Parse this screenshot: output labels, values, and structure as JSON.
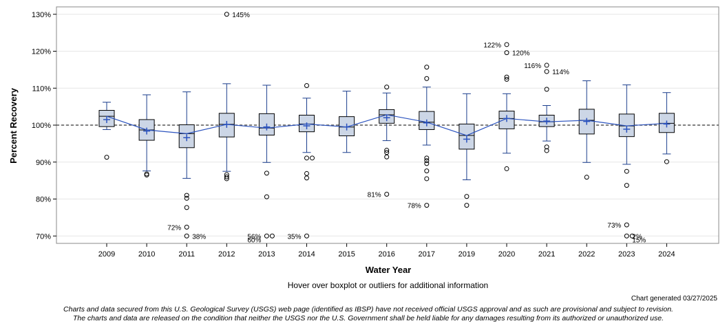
{
  "chart_data": {
    "type": "boxplot",
    "ylabel": "Percent Recovery",
    "xlabel": "Water Year",
    "ylim": [
      68,
      132
    ],
    "yticks": [
      70,
      80,
      90,
      100,
      110,
      120,
      130
    ],
    "ytick_format": "%",
    "reference_line": 100,
    "categories": [
      "2009",
      "2010",
      "2011",
      "2012",
      "2013",
      "2014",
      "2015",
      "2016",
      "2017",
      "2019",
      "2020",
      "2021",
      "2022",
      "2023",
      "2024"
    ],
    "boxes": [
      {
        "year": "2009",
        "whisker_low": 98.8,
        "q1": 99.6,
        "median": 102.4,
        "q3": 104.0,
        "whisker_high": 106.2,
        "mean": 101.5,
        "outliers": [
          91.3
        ]
      },
      {
        "year": "2010",
        "whisker_low": 87.6,
        "q1": 95.9,
        "median": 98.7,
        "q3": 101.5,
        "whisker_high": 108.2,
        "mean": 98.4,
        "outliers": [
          86.8,
          86.5
        ]
      },
      {
        "year": "2011",
        "whisker_low": 85.6,
        "q1": 93.9,
        "median": 97.7,
        "q3": 100.1,
        "whisker_high": 109.0,
        "mean": 96.6,
        "outliers": [
          81.0,
          80.2,
          77.7,
          72.4,
          70.0
        ]
      },
      {
        "year": "2012",
        "whisker_low": 87.5,
        "q1": 96.8,
        "median": 100.2,
        "q3": 103.2,
        "whisker_high": 111.2,
        "mean": 100.2,
        "outliers": [
          86.6,
          86.0,
          85.5,
          130.0
        ]
      },
      {
        "year": "2013",
        "whisker_low": 89.9,
        "q1": 97.3,
        "median": 99.2,
        "q3": 103.1,
        "whisker_high": 110.8,
        "mean": 99.5,
        "outliers": [
          87.0,
          80.6,
          70.0,
          70.0
        ]
      },
      {
        "year": "2014",
        "whisker_low": 92.6,
        "q1": 98.2,
        "median": 100.3,
        "q3": 102.7,
        "whisker_high": 107.3,
        "mean": 99.8,
        "outliers": [
          110.7,
          91.1,
          91.1,
          86.9,
          85.7,
          70.0
        ]
      },
      {
        "year": "2015",
        "whisker_low": 92.6,
        "q1": 97.1,
        "median": 99.5,
        "q3": 102.3,
        "whisker_high": 109.2,
        "mean": 99.5,
        "outliers": []
      },
      {
        "year": "2016",
        "whisker_low": 95.8,
        "q1": 100.5,
        "median": 102.8,
        "q3": 104.2,
        "whisker_high": 108.7,
        "mean": 102.0,
        "outliers": [
          110.3,
          93.2,
          92.6,
          91.4,
          81.3
        ]
      },
      {
        "year": "2017",
        "whisker_low": 94.6,
        "q1": 98.8,
        "median": 100.8,
        "q3": 103.7,
        "whisker_high": 110.3,
        "mean": 100.6,
        "outliers": [
          115.7,
          112.6,
          91.1,
          90.4,
          89.6,
          87.6,
          85.5,
          78.3
        ]
      },
      {
        "year": "2019",
        "whisker_low": 85.2,
        "q1": 93.5,
        "median": 97.2,
        "q3": 100.3,
        "whisker_high": 108.5,
        "mean": 96.2,
        "outliers": [
          80.7,
          78.3
        ]
      },
      {
        "year": "2020",
        "whisker_low": 92.4,
        "q1": 99.0,
        "median": 101.8,
        "q3": 103.8,
        "whisker_high": 108.5,
        "mean": 101.8,
        "outliers": [
          121.8,
          119.6,
          113.0,
          112.4,
          88.2
        ]
      },
      {
        "year": "2021",
        "whisker_low": 95.7,
        "q1": 99.6,
        "median": 100.9,
        "q3": 102.7,
        "whisker_high": 105.3,
        "mean": 101.1,
        "outliers": [
          116.2,
          114.5,
          109.7,
          94.1,
          93.1
        ]
      },
      {
        "year": "2022",
        "whisker_low": 89.9,
        "q1": 97.6,
        "median": 101.3,
        "q3": 104.3,
        "whisker_high": 112.0,
        "mean": 101.0,
        "outliers": [
          85.9
        ]
      },
      {
        "year": "2023",
        "whisker_low": 89.4,
        "q1": 96.9,
        "median": 99.8,
        "q3": 103.0,
        "whisker_high": 110.9,
        "mean": 98.9,
        "outliers": [
          87.5,
          83.7,
          73.0,
          70.0,
          70.0
        ]
      },
      {
        "year": "2024",
        "whisker_low": 92.2,
        "q1": 98.0,
        "median": 100.5,
        "q3": 103.2,
        "whisker_high": 108.8,
        "mean": 100.3,
        "outliers": [
          90.1
        ]
      }
    ],
    "outlier_labels": [
      {
        "year": "2012",
        "y": 130.0,
        "text": "145%",
        "side": "right"
      },
      {
        "year": "2011",
        "y": 72.4,
        "text": "72%",
        "side": "left"
      },
      {
        "year": "2011",
        "y": 70.0,
        "text": "38%",
        "side": "right"
      },
      {
        "year": "2013",
        "y": 70.0,
        "text": "56%",
        "side": "left"
      },
      {
        "year": "2013",
        "y": 69.0,
        "text": "60%",
        "side": "left"
      },
      {
        "year": "2014",
        "y": 70.0,
        "text": "35%",
        "side": "left"
      },
      {
        "year": "2016",
        "y": 81.3,
        "text": "81%",
        "side": "left"
      },
      {
        "year": "2017",
        "y": 78.3,
        "text": "78%",
        "side": "left"
      },
      {
        "year": "2020",
        "y": 121.8,
        "text": "122%",
        "side": "left"
      },
      {
        "year": "2020",
        "y": 119.6,
        "text": "120%",
        "side": "right"
      },
      {
        "year": "2021",
        "y": 116.2,
        "text": "116%",
        "side": "left"
      },
      {
        "year": "2021",
        "y": 114.5,
        "text": "114%",
        "side": "right"
      },
      {
        "year": "2023",
        "y": 73.0,
        "text": "73%",
        "side": "left"
      },
      {
        "year": "2023",
        "y": 70.0,
        "text": "2%",
        "side": "right"
      },
      {
        "year": "2023",
        "y": 69.0,
        "text": "15%",
        "side": "right"
      }
    ],
    "colors": {
      "box_fill": "#ccd6e6",
      "box_stroke": "#1a3d8c",
      "mean_line": "#2a52be",
      "ref_line": "#555555",
      "grid": "#e6e6e6",
      "outlier": "#000000"
    }
  },
  "footer": {
    "hover_note": "Hover over boxplot or outliers for additional information",
    "generated": "Chart generated 03/27/2025",
    "disclaimer_line1": "Charts and data secured from this U.S. Geological Survey (USGS) web page (identified as IBSP) have not received official USGS approval and as such are provisional and subject to revision.",
    "disclaimer_line2": "The charts and data are released on the condition that neither the USGS nor the U.S. Government shall be held liable for any damages resulting from its authorized or unauthorized use."
  }
}
